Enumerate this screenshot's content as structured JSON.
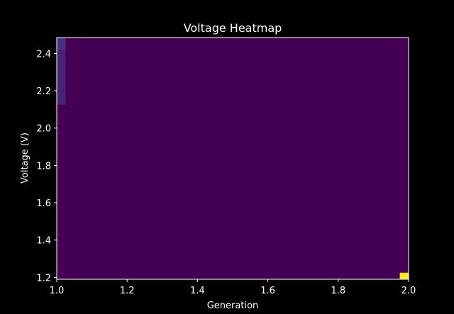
{
  "chart_data": {
    "type": "heatmap",
    "title": "Voltage Heatmap",
    "xlabel": "Generation",
    "ylabel": "Voltage (V)",
    "xlim": [
      1.0,
      2.0
    ],
    "ylim": [
      1.19,
      2.485
    ],
    "x_ticks": [
      "1.0",
      "1.2",
      "1.4",
      "1.6",
      "1.8",
      "2.0"
    ],
    "y_ticks": [
      "1.2",
      "1.4",
      "1.6",
      "1.8",
      "2.0",
      "2.2",
      "2.4"
    ],
    "colormap": "viridis",
    "background_color": "#440154",
    "grid": false,
    "cells": [
      {
        "x0": 1.0,
        "x1": 1.025,
        "y0": 2.125,
        "y1": 2.485,
        "color": "#482374"
      },
      {
        "x0": 1.0,
        "x1": 1.025,
        "y0": 2.42,
        "y1": 2.485,
        "color": "#46307e"
      },
      {
        "x0": 1.975,
        "x1": 2.0,
        "y0": 1.19,
        "y1": 1.225,
        "color": "#fde725"
      }
    ]
  }
}
